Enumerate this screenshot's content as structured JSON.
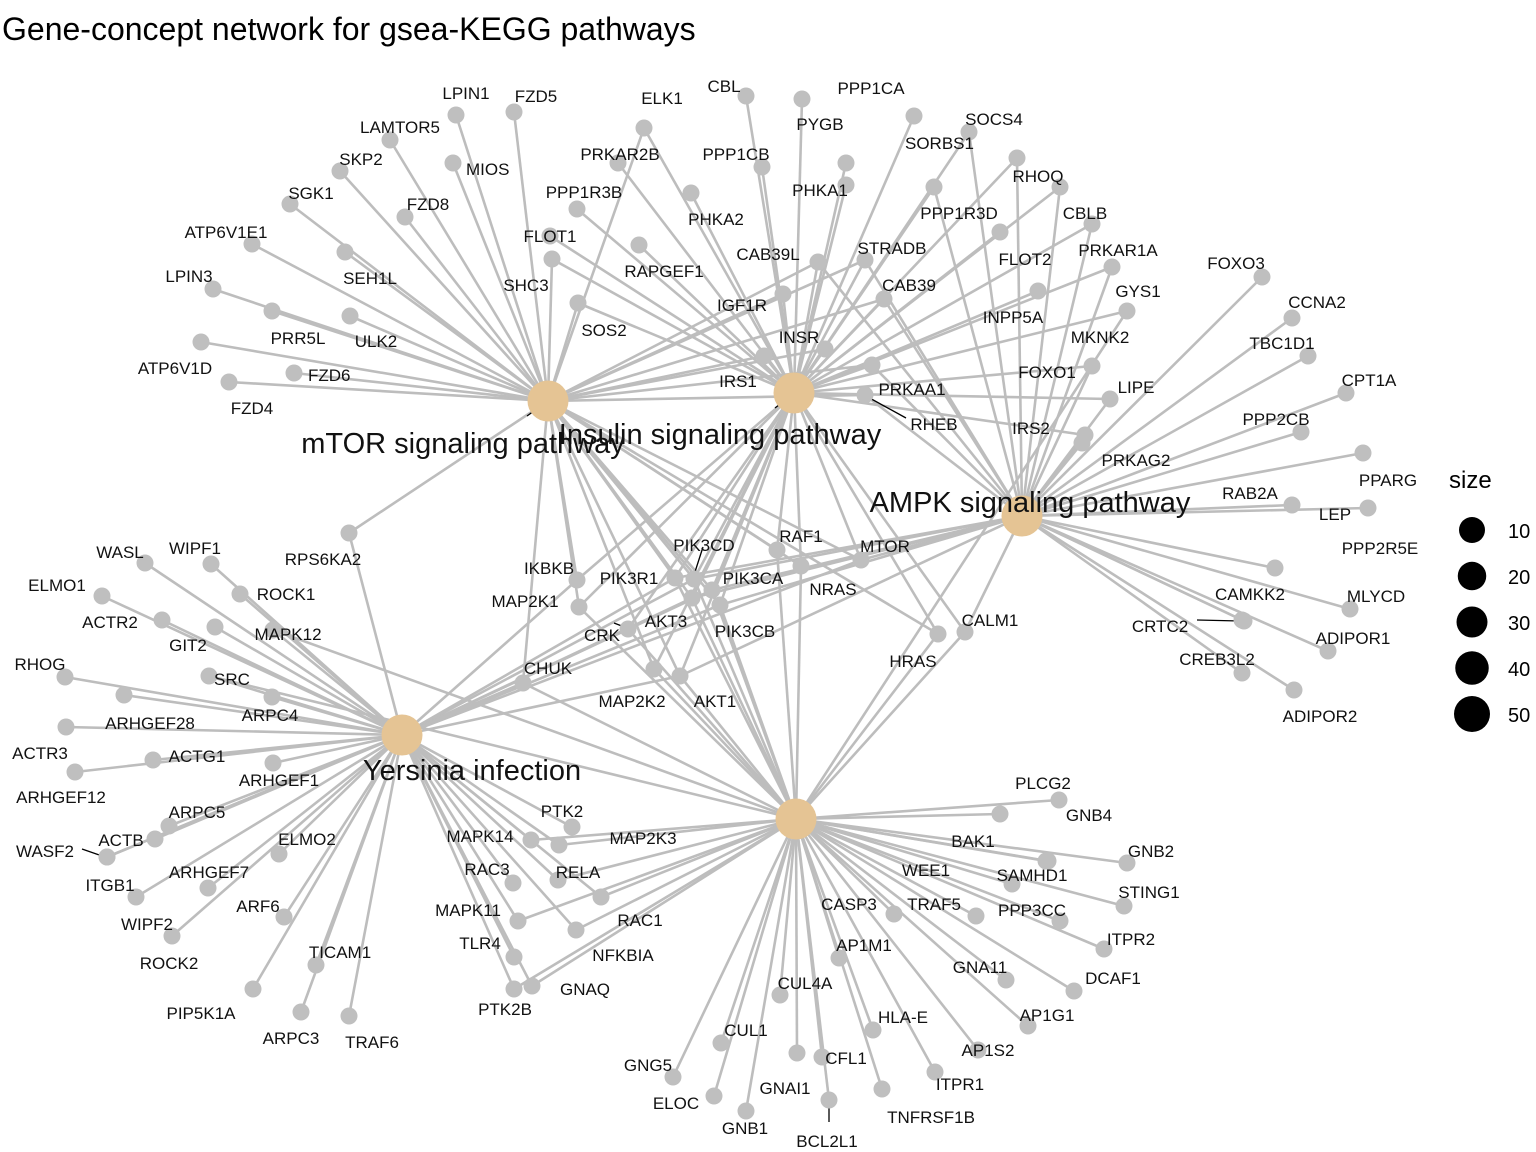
{
  "title": "Gene-concept network for gsea-KEGG pathways",
  "colors": {
    "hub": "#e5c494",
    "gene": "#bfbfbf",
    "edge": "#bdbdbd"
  },
  "hubs": [
    {
      "id": "mTOR",
      "label": "mTOR signaling pathway"
    },
    {
      "id": "INS",
      "label": "Insulin signaling pathway"
    },
    {
      "id": "AMPK",
      "label": "AMPK signaling pathway"
    },
    {
      "id": "YER",
      "label": "Yersinia infection"
    },
    {
      "id": "H5",
      "label": ""
    }
  ],
  "genes": [
    "LPIN1",
    "FZD5",
    "LAMTOR5",
    "MIOS",
    "SKP2",
    "FZD8",
    "SGK1",
    "ATP6V1E1",
    "SEH1L",
    "LPIN3",
    "PRR5L",
    "ULK2",
    "ATP6V1D",
    "FZD6",
    "FZD4",
    "SHC3",
    "SOS2",
    "FLOT1",
    "ELK1",
    "CBL",
    "PYGB",
    "PPP1CA",
    "SOCS4",
    "SORBS1",
    "PRKAR2B",
    "PPP1CB",
    "PHKA1",
    "RHOQ",
    "PPP1R3B",
    "PHKA2",
    "PPP1R3D",
    "CBLB",
    "RAPGEF1",
    "CAB39L",
    "STRADB",
    "FLOT2",
    "PRKAR1A",
    "IGF1R",
    "CAB39",
    "GYS1",
    "INPP5A",
    "INSR",
    "MKNK2",
    "IRS1",
    "FOXO1",
    "PRKAA1",
    "LIPE",
    "RHEB",
    "IRS2",
    "FOXO3",
    "CCNA2",
    "TBC1D1",
    "CPT1A",
    "PPP2CB",
    "PRKAG2",
    "PPARG",
    "RAB2A",
    "LEP",
    "PPP2R5E",
    "CAMKK2",
    "MLYCD",
    "CRTC2",
    "ADIPOR1",
    "CREB3L2",
    "ADIPOR2",
    "RPS6KA2",
    "IKBKB",
    "PIK3CD",
    "RAF1",
    "MTOR",
    "PIK3R1",
    "PIK3CA",
    "NRAS",
    "MAP2K1",
    "AKT3",
    "PIK3CB",
    "CRK",
    "CALM1",
    "HRAS",
    "CHUK",
    "MAP2K2",
    "AKT1",
    "WASL",
    "WIPF1",
    "ELMO1",
    "ROCK1",
    "ACTR2",
    "GIT2",
    "MAPK12",
    "RHOG",
    "SRC",
    "ARHGEF28",
    "ARPC4",
    "ACTR3",
    "ACTG1",
    "ARHGEF12",
    "ARHGEF1",
    "ARPC5",
    "WASF2",
    "ACTB",
    "ITGB1",
    "ELMO2",
    "ARHGEF7",
    "WIPF2",
    "ARF6",
    "ROCK2",
    "TICAM1",
    "PIP5K1A",
    "ARPC3",
    "TRAF6",
    "PTK2",
    "MAPK14",
    "MAP2K3",
    "RAC3",
    "RELA",
    "MAPK11",
    "RAC1",
    "TLR4",
    "NFKBIA",
    "GNAQ",
    "PTK2B",
    "PLCG2",
    "GNB4",
    "BAK1",
    "GNB2",
    "SAMHD1",
    "WEE1",
    "STING1",
    "CASP3",
    "TRAF5",
    "PPP3CC",
    "ITPR2",
    "AP1M1",
    "GNA11",
    "DCAF1",
    "CUL4A",
    "HLA-E",
    "AP1G1",
    "CUL1",
    "AP1S2",
    "CFL1",
    "GNG5",
    "ITPR1",
    "GNAI1",
    "ELOC",
    "TNFRSF1B",
    "GNB1",
    "BCL2L1"
  ],
  "legend": {
    "title": "size",
    "items": [
      {
        "label": "10",
        "value": 10
      },
      {
        "label": "20",
        "value": 20
      },
      {
        "label": "30",
        "value": 30
      },
      {
        "label": "40",
        "value": 40
      },
      {
        "label": "50",
        "value": 50
      }
    ]
  }
}
